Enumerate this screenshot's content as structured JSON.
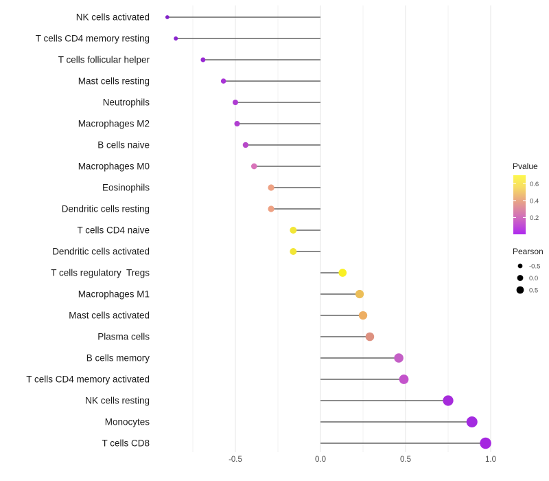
{
  "chart_data": {
    "type": "lollipop",
    "orientation": "horizontal",
    "title": "",
    "xlabel": "",
    "ylabel": "",
    "categories": [
      "NK cells activated",
      "T cells CD4 memory resting",
      "T cells follicular helper",
      "Mast cells resting",
      "Neutrophils",
      "Macrophages M2",
      "B cells naive",
      "Macrophages M0",
      "Eosinophils",
      "Dendritic cells resting",
      "T cells CD4 naive",
      "Dendritic cells activated",
      "T cells regulatory  Tregs",
      "Macrophages M1",
      "Mast cells activated",
      "Plasma cells",
      "B cells memory",
      "T cells CD4 memory activated",
      "NK cells resting",
      "Monocytes",
      "T cells CD8"
    ],
    "pearson": [
      -0.9,
      -0.85,
      -0.69,
      -0.57,
      -0.5,
      -0.49,
      -0.44,
      -0.39,
      -0.29,
      -0.29,
      -0.16,
      -0.16,
      0.13,
      0.23,
      0.25,
      0.29,
      0.46,
      0.49,
      0.75,
      0.89,
      0.97
    ],
    "pvalue_approx": [
      0.01,
      0.02,
      0.05,
      0.08,
      0.1,
      0.11,
      0.14,
      0.25,
      0.4,
      0.4,
      0.6,
      0.6,
      0.68,
      0.52,
      0.48,
      0.42,
      0.18,
      0.16,
      0.03,
      0.02,
      0.01
    ],
    "point_colors": [
      "#8222c9",
      "#8a24cf",
      "#9929d3",
      "#a935d6",
      "#ae3bd2",
      "#b03ed1",
      "#b748c9",
      "#d873ba",
      "#eea183",
      "#eea183",
      "#f2e636",
      "#f2e636",
      "#f9f024",
      "#ecbe58",
      "#edae63",
      "#dd9180",
      "#c45fc6",
      "#c353cb",
      "#a62bdb",
      "#a32be0",
      "#a527e0"
    ],
    "x_tick_labels": [
      "-0.5",
      "0.0",
      "0.5",
      "1.0"
    ],
    "x_tick_values": [
      -0.5,
      0.0,
      0.5,
      1.0
    ],
    "x_minor_grid": [
      -0.75,
      -0.25,
      0.25,
      0.75
    ],
    "xlim": [
      -0.99,
      1.06
    ],
    "grid": "on",
    "legend_position": "right",
    "legends": {
      "pvalue": {
        "title": "Pvalue",
        "tick_labels": [
          "0.6",
          "0.4",
          "0.2"
        ],
        "tick_values": [
          0.6,
          0.4,
          0.2
        ],
        "range": [
          0.0,
          0.7
        ],
        "gradient_stops": [
          {
            "offset": 0.0,
            "color": "#fdf84d"
          },
          {
            "offset": 0.2,
            "color": "#f7dd64"
          },
          {
            "offset": 0.44,
            "color": "#e8a386"
          },
          {
            "offset": 0.72,
            "color": "#d06bbe"
          },
          {
            "offset": 1.0,
            "color": "#ae29ef"
          }
        ]
      },
      "pearson": {
        "title": "Pearson",
        "items": [
          {
            "label": "-0.5",
            "value": -0.5
          },
          {
            "label": "0.0",
            "value": 0.0
          },
          {
            "label": "0.5",
            "value": 0.5
          }
        ],
        "dot_color": "#000000"
      }
    },
    "colors": {
      "stem_line": "#636363",
      "grid_major": "#e4e4e4",
      "grid_minor": "#f0f0f0",
      "axis_tick_text": "#4d4d4d",
      "category_text": "#1a1a1a",
      "legend_title_text": "#1a1a1a",
      "legend_tick_text": "#4d4d4d",
      "background": "#ffffff"
    }
  }
}
